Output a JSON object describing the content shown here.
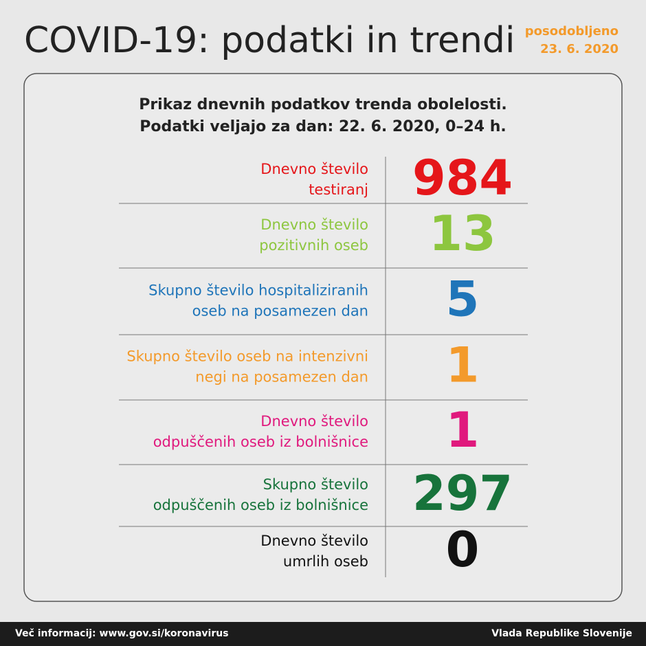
{
  "header": {
    "title": "COVID-19: podatki in trendi",
    "updated": [
      "posodobljeno",
      "23. 6. 2020"
    ]
  },
  "card": {
    "subtitle": [
      "Prikaz dnevnih podatkov trenda obolelosti.",
      "Podatki veljajo za dan: 22. 6. 2020, 0–24 h."
    ],
    "rows": [
      {
        "label": [
          "Dnevno število",
          "testiranj"
        ],
        "value": 984,
        "color": "#e5161a"
      },
      {
        "label": [
          "Dnevno število",
          "pozitivnih oseb"
        ],
        "value": 13,
        "color": "#8dc63f"
      },
      {
        "label": [
          "Skupno število hospitaliziranih",
          "oseb na posamezen dan"
        ],
        "value": 5,
        "color": "#1f75b9"
      },
      {
        "label": [
          "Skupno število oseb na intenzivni",
          "negi na posamezen dan"
        ],
        "value": 1,
        "color": "#f39a2b"
      },
      {
        "label": [
          "Dnevno število",
          "odpuščenih oseb iz bolnišnice"
        ],
        "value": 1,
        "color": "#e0197d"
      },
      {
        "label": [
          "Skupno število",
          "odpuščenih oseb iz bolnišnice"
        ],
        "value": 297,
        "color": "#17733b"
      },
      {
        "label": [
          "Dnevno število",
          "umrlih oseb"
        ],
        "value": 0,
        "color": "#111111"
      }
    ]
  },
  "footer": {
    "left": "Več informacij: www.gov.si/koronavirus",
    "right": "Vlada Republike Slovenije"
  }
}
